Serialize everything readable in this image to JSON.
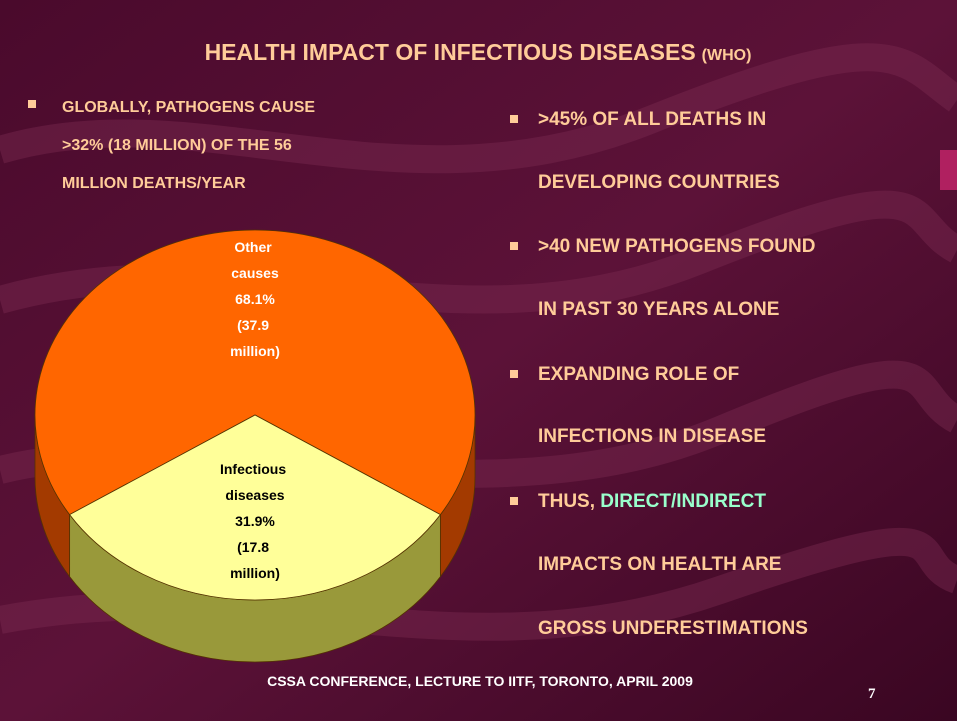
{
  "slide": {
    "title": "HEALTH IMPACT OF INFECTIOUS DISEASES",
    "title_note": "(WHO)",
    "left_bullet": [
      "GLOBALLY, PATHOGENS CAUSE",
      ">32% (18 MILLION) OF THE 56",
      "MILLION DEATHS/YEAR"
    ],
    "right_bullets": [
      [
        ">45% OF ALL DEATHS IN",
        "DEVELOPING COUNTRIES"
      ],
      [
        ">40 NEW PATHOGENS FOUND",
        "IN PAST 30 YEARS ALONE"
      ],
      [
        "EXPANDING ROLE OF",
        "INFECTIONS IN DISEASE"
      ]
    ],
    "last_bullet": {
      "lead": "THUS, ",
      "highlight": "DIRECT/INDIRECT",
      "lines": [
        "IMPACTS ON HEALTH ARE",
        "GROSS UNDERESTIMATIONS"
      ]
    },
    "footer": "CSSA CONFERENCE, LECTURE TO IITF, TORONTO, APRIL 2009",
    "page_number": "7"
  },
  "chart_data": {
    "type": "pie",
    "categories": [
      "Other causes",
      "Infectious diseases"
    ],
    "values": [
      68.1,
      31.9
    ],
    "value_labels": [
      "68.1%",
      "31.9%"
    ],
    "annotations": [
      "(37.9 million)",
      "(17.8 million)"
    ],
    "colors": [
      "#ff6600",
      "#ffff99"
    ],
    "side_colors": [
      "#a33a00",
      "#99993a"
    ],
    "label_colors": [
      "#ffffff",
      "#000000"
    ]
  }
}
